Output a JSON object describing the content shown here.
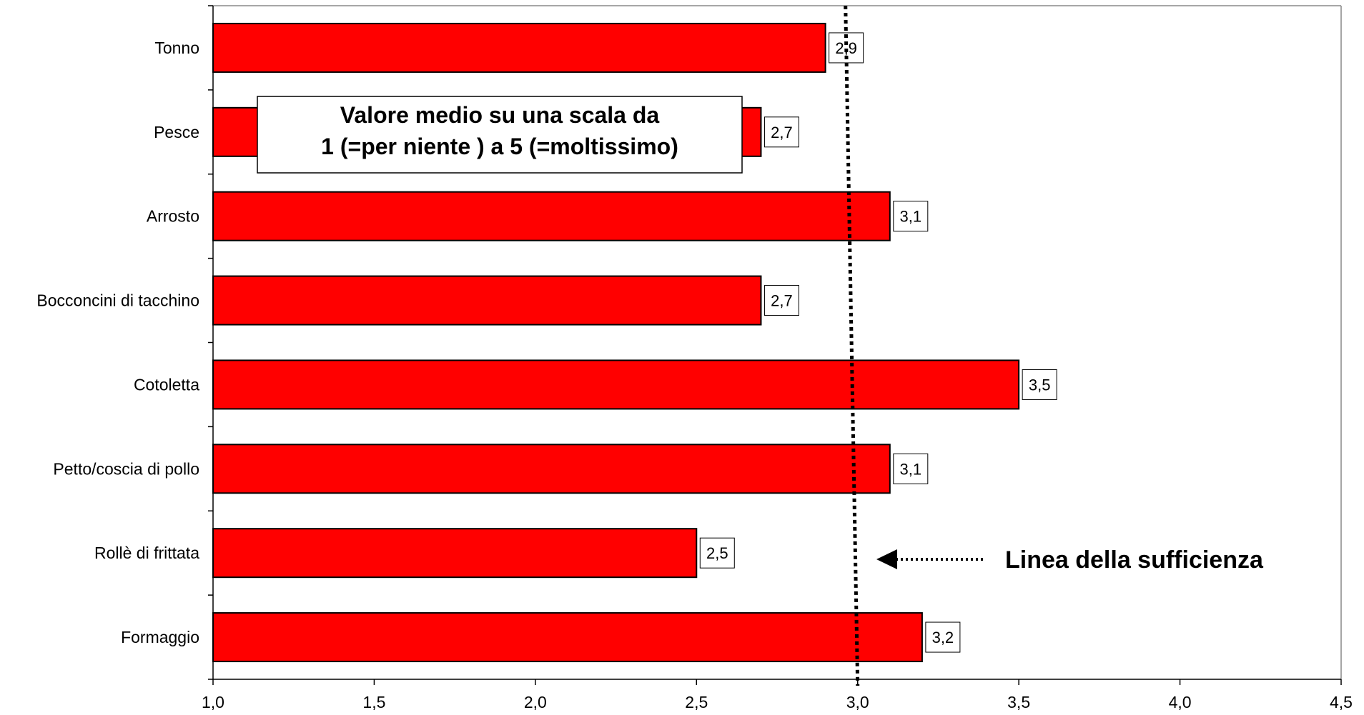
{
  "chart_data": {
    "type": "bar",
    "orientation": "horizontal",
    "categories": [
      "Tonno",
      "Pesce",
      "Arrosto",
      "Bocconcini di tacchino",
      "Cotoletta",
      "Petto/coscia di pollo",
      "Rollè di frittata",
      "Formaggio"
    ],
    "values": [
      2.9,
      2.7,
      3.1,
      2.7,
      3.5,
      3.1,
      2.5,
      3.2
    ],
    "data_labels": [
      "2,9",
      "2,7",
      "3,1",
      "2,7",
      "3,5",
      "3,1",
      "2,5",
      "3,2"
    ],
    "xlim": [
      1.0,
      4.5
    ],
    "x_ticks": [
      1.0,
      1.5,
      2.0,
      2.5,
      3.0,
      3.5,
      4.0,
      4.5
    ],
    "x_tick_labels": [
      "1,0",
      "1,5",
      "2,0",
      "2,5",
      "3,0",
      "3,5",
      "4,0",
      "4,5"
    ],
    "grid": false,
    "bar_color": "#ff0000",
    "reference_line": {
      "value": 3.0,
      "style": "dotted",
      "label": "Linea della sufficienza"
    },
    "note": [
      "Valore medio su una scala da",
      "1 (=per niente ) a 5 (=moltissimo)"
    ]
  }
}
